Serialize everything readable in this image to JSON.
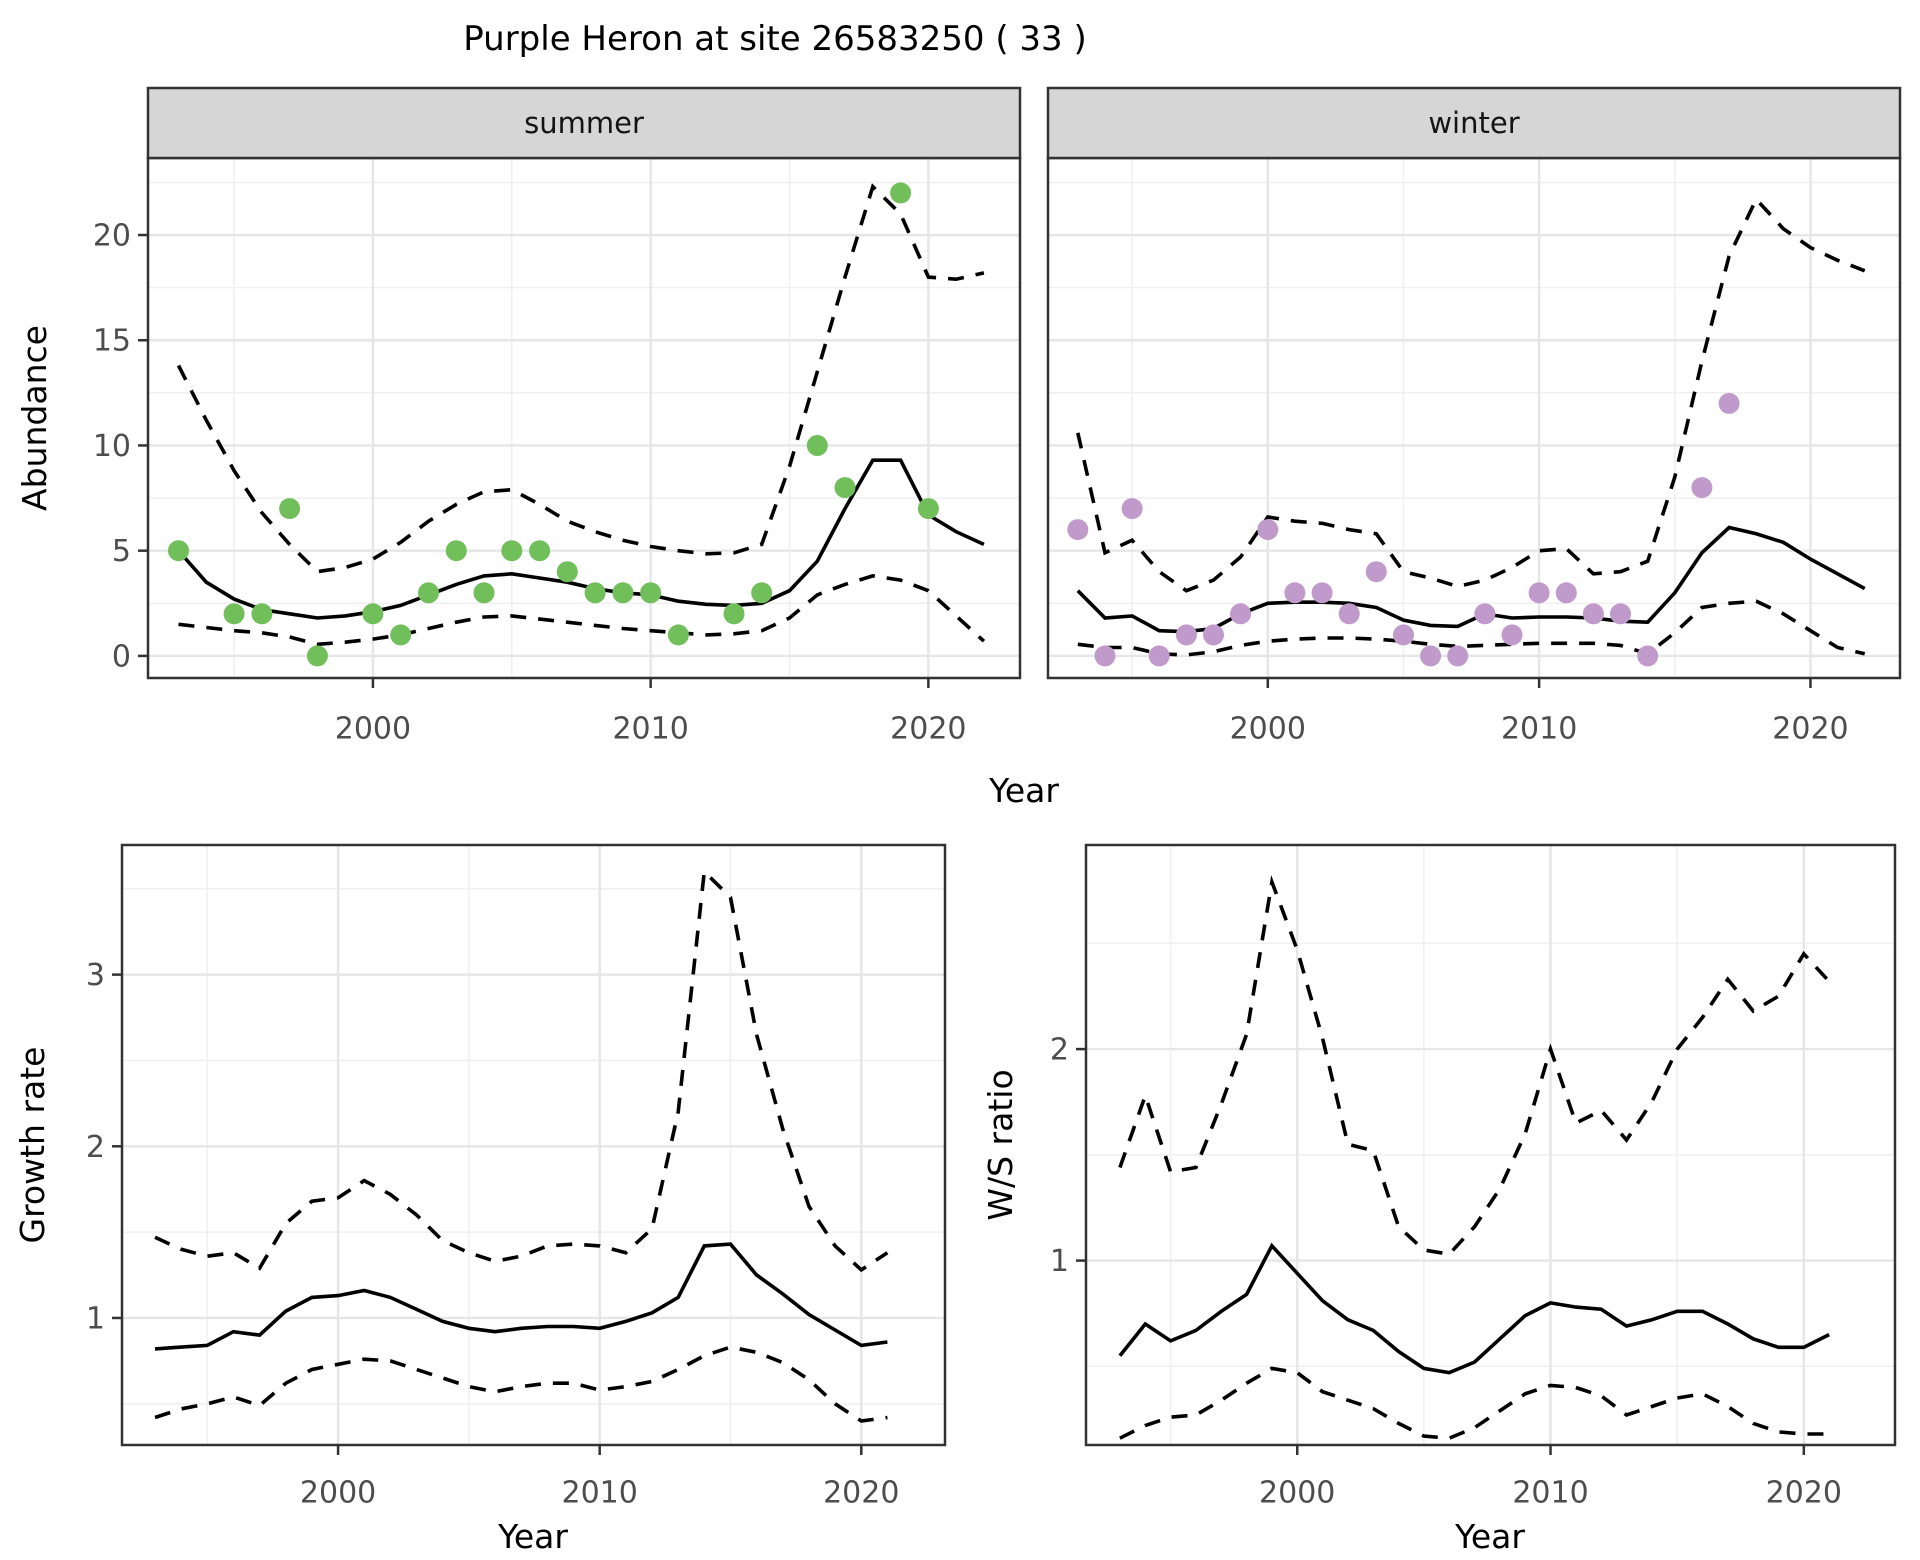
{
  "title": "Purple Heron at site 26583250 ( 33 )",
  "colors": {
    "summer_point": "#70BF5B",
    "winter_point": "#C09ACB",
    "fit_line": "#000000",
    "ci_line": "#000000",
    "strip_bg": "#D6D6D6",
    "strip_text": "#141414",
    "panel_border": "#333333",
    "grid_major": "#E6E6E6",
    "grid_minor": "#F0F0F0",
    "tick_text": "#4D4D4D",
    "axis_title_text": "#000000"
  },
  "chart_data": {
    "abundance": {
      "type": "scatter",
      "ylabel": "Abundance",
      "xlabel": "Year",
      "yticks": [
        0,
        5,
        10,
        15,
        20
      ],
      "yticks_minor": [
        2.5,
        7.5,
        12.5,
        17.5,
        22.5
      ],
      "xticks": [
        2000,
        2010,
        2020
      ],
      "xticks_minor": [
        1995,
        2005,
        2015
      ],
      "ylim": [
        -1.05,
        23.66
      ],
      "xlim": [
        1991.9,
        2023.3
      ],
      "legend_position": "none",
      "grid": true,
      "years": [
        1993,
        1994,
        1995,
        1996,
        1997,
        1998,
        1999,
        2000,
        2001,
        2002,
        2003,
        2004,
        2005,
        2006,
        2007,
        2008,
        2009,
        2010,
        2011,
        2012,
        2013,
        2014,
        2015,
        2016,
        2017,
        2018,
        2019,
        2020,
        2021,
        2022
      ],
      "facets": [
        {
          "label": "summer",
          "points": {
            "x": [
              1993,
              1995,
              1996,
              1997,
              1998,
              2000,
              2001,
              2002,
              2003,
              2004,
              2005,
              2006,
              2007,
              2008,
              2009,
              2010,
              2011,
              2013,
              2014,
              2016,
              2017,
              2019,
              2020
            ],
            "y": [
              5,
              2,
              2,
              7,
              0,
              2,
              1,
              3,
              5,
              3,
              5,
              5,
              4,
              3,
              3,
              3,
              1,
              2,
              3,
              10,
              8,
              22,
              7
            ]
          },
          "fit": [
            5.0,
            3.5,
            2.7,
            2.2,
            2.0,
            1.8,
            1.9,
            2.1,
            2.4,
            2.9,
            3.4,
            3.8,
            3.9,
            3.7,
            3.5,
            3.2,
            3.0,
            2.9,
            2.6,
            2.45,
            2.4,
            2.5,
            3.1,
            4.5,
            7.0,
            9.3,
            9.3,
            6.7,
            5.9,
            5.3
          ],
          "upper": [
            13.8,
            11.2,
            8.8,
            6.8,
            5.3,
            4.0,
            4.2,
            4.6,
            5.4,
            6.4,
            7.2,
            7.8,
            7.9,
            7.2,
            6.4,
            5.9,
            5.5,
            5.2,
            5.0,
            4.85,
            4.9,
            5.3,
            9.0,
            13.5,
            18.0,
            22.3,
            21.0,
            18.0,
            17.9,
            18.2
          ],
          "lower": [
            1.5,
            1.35,
            1.2,
            1.1,
            0.9,
            0.55,
            0.65,
            0.8,
            1.0,
            1.3,
            1.6,
            1.85,
            1.9,
            1.75,
            1.6,
            1.45,
            1.3,
            1.2,
            1.1,
            1.0,
            1.05,
            1.2,
            1.8,
            2.9,
            3.4,
            3.8,
            3.6,
            3.1,
            1.9,
            0.7
          ]
        },
        {
          "label": "winter",
          "points": {
            "x": [
              1993,
              1994,
              1995,
              1996,
              1997,
              1998,
              1999,
              2000,
              2001,
              2002,
              2003,
              2004,
              2005,
              2006,
              2007,
              2008,
              2009,
              2010,
              2011,
              2012,
              2013,
              2014,
              2016,
              2017
            ],
            "y": [
              6,
              0,
              7,
              0,
              1,
              1,
              2,
              6,
              3,
              3,
              2,
              4,
              1,
              0,
              0,
              2,
              1,
              3,
              3,
              2,
              2,
              0,
              8,
              12
            ]
          },
          "fit": [
            3.1,
            1.8,
            1.9,
            1.2,
            1.15,
            1.3,
            2.0,
            2.5,
            2.55,
            2.55,
            2.5,
            2.3,
            1.7,
            1.45,
            1.4,
            2.0,
            1.8,
            1.85,
            1.85,
            1.8,
            1.65,
            1.6,
            3.0,
            4.9,
            6.1,
            5.8,
            5.4,
            4.6,
            3.9,
            3.2
          ],
          "upper": [
            10.6,
            4.9,
            5.5,
            4.0,
            3.1,
            3.6,
            4.7,
            6.6,
            6.4,
            6.3,
            6.0,
            5.8,
            4.0,
            3.7,
            3.3,
            3.6,
            4.2,
            5.0,
            5.1,
            3.9,
            4.0,
            4.5,
            8.5,
            14.0,
            19.0,
            21.7,
            20.3,
            19.4,
            18.8,
            18.3
          ],
          "lower": [
            0.55,
            0.4,
            0.4,
            0.1,
            0.05,
            0.2,
            0.5,
            0.7,
            0.8,
            0.85,
            0.85,
            0.8,
            0.7,
            0.55,
            0.45,
            0.5,
            0.55,
            0.6,
            0.6,
            0.6,
            0.5,
            0.1,
            1.1,
            2.3,
            2.5,
            2.6,
            2.0,
            1.2,
            0.4,
            0.1
          ]
        }
      ]
    },
    "growth_rate": {
      "type": "line",
      "ylabel": "Growth rate",
      "xlabel": "Year",
      "yticks": [
        1,
        2,
        3
      ],
      "yticks_minor": [
        0.5,
        1.5,
        2.5,
        3.5
      ],
      "xticks": [
        2000,
        2010,
        2020
      ],
      "xticks_minor": [
        1995,
        2005,
        2015
      ],
      "ylim": [
        0.26,
        3.755
      ],
      "xlim": [
        1991.74,
        2023.2
      ],
      "grid": true,
      "years": [
        1993,
        1994,
        1995,
        1996,
        1997,
        1998,
        1999,
        2000,
        2001,
        2002,
        2003,
        2004,
        2005,
        2006,
        2007,
        2008,
        2009,
        2010,
        2011,
        2012,
        2013,
        2014,
        2015,
        2016,
        2017,
        2018,
        2019,
        2020,
        2021
      ],
      "fit": [
        0.82,
        0.83,
        0.84,
        0.92,
        0.9,
        1.04,
        1.12,
        1.13,
        1.16,
        1.12,
        1.05,
        0.98,
        0.94,
        0.92,
        0.94,
        0.95,
        0.95,
        0.94,
        0.98,
        1.03,
        1.12,
        1.42,
        1.43,
        1.25,
        1.14,
        1.02,
        0.93,
        0.84,
        0.86
      ],
      "upper": [
        1.47,
        1.4,
        1.36,
        1.38,
        1.29,
        1.55,
        1.68,
        1.7,
        1.8,
        1.72,
        1.6,
        1.45,
        1.38,
        1.33,
        1.36,
        1.42,
        1.43,
        1.42,
        1.38,
        1.52,
        2.2,
        3.6,
        3.45,
        2.65,
        2.1,
        1.65,
        1.42,
        1.28,
        1.38
      ],
      "lower": [
        0.42,
        0.47,
        0.5,
        0.54,
        0.49,
        0.62,
        0.7,
        0.73,
        0.76,
        0.75,
        0.7,
        0.65,
        0.6,
        0.57,
        0.6,
        0.62,
        0.62,
        0.58,
        0.6,
        0.63,
        0.7,
        0.78,
        0.83,
        0.8,
        0.74,
        0.64,
        0.5,
        0.4,
        0.42
      ]
    },
    "ws_ratio": {
      "type": "line",
      "ylabel": "W/S ratio",
      "xlabel": "Year",
      "yticks": [
        1,
        2
      ],
      "yticks_minor": [
        0.5,
        1.5,
        2.5
      ],
      "xticks": [
        2000,
        2010,
        2020
      ],
      "xticks_minor": [
        1995,
        2005,
        2015
      ],
      "ylim": [
        0.128,
        2.965
      ],
      "xlim": [
        1991.66,
        2023.6
      ],
      "grid": true,
      "years": [
        1993,
        1994,
        1995,
        1996,
        1997,
        1998,
        1999,
        2000,
        2001,
        2002,
        2003,
        2004,
        2005,
        2006,
        2007,
        2008,
        2009,
        2010,
        2011,
        2012,
        2013,
        2014,
        2015,
        2016,
        2017,
        2018,
        2019,
        2020,
        2021
      ],
      "fit": [
        0.55,
        0.7,
        0.62,
        0.67,
        0.76,
        0.84,
        1.07,
        0.94,
        0.81,
        0.72,
        0.67,
        0.57,
        0.49,
        0.47,
        0.52,
        0.63,
        0.74,
        0.8,
        0.78,
        0.77,
        0.69,
        0.72,
        0.76,
        0.76,
        0.7,
        0.63,
        0.59,
        0.59,
        0.65
      ],
      "upper": [
        1.44,
        1.78,
        1.42,
        1.44,
        1.74,
        2.07,
        2.79,
        2.47,
        2.05,
        1.55,
        1.52,
        1.16,
        1.05,
        1.03,
        1.16,
        1.34,
        1.6,
        2.0,
        1.65,
        1.71,
        1.57,
        1.75,
        2.0,
        2.15,
        2.33,
        2.18,
        2.25,
        2.45,
        2.32
      ],
      "lower": [
        0.16,
        0.22,
        0.26,
        0.27,
        0.34,
        0.42,
        0.49,
        0.47,
        0.38,
        0.34,
        0.3,
        0.23,
        0.17,
        0.16,
        0.21,
        0.29,
        0.37,
        0.41,
        0.4,
        0.36,
        0.27,
        0.31,
        0.35,
        0.37,
        0.31,
        0.23,
        0.19,
        0.18,
        0.18
      ]
    }
  }
}
